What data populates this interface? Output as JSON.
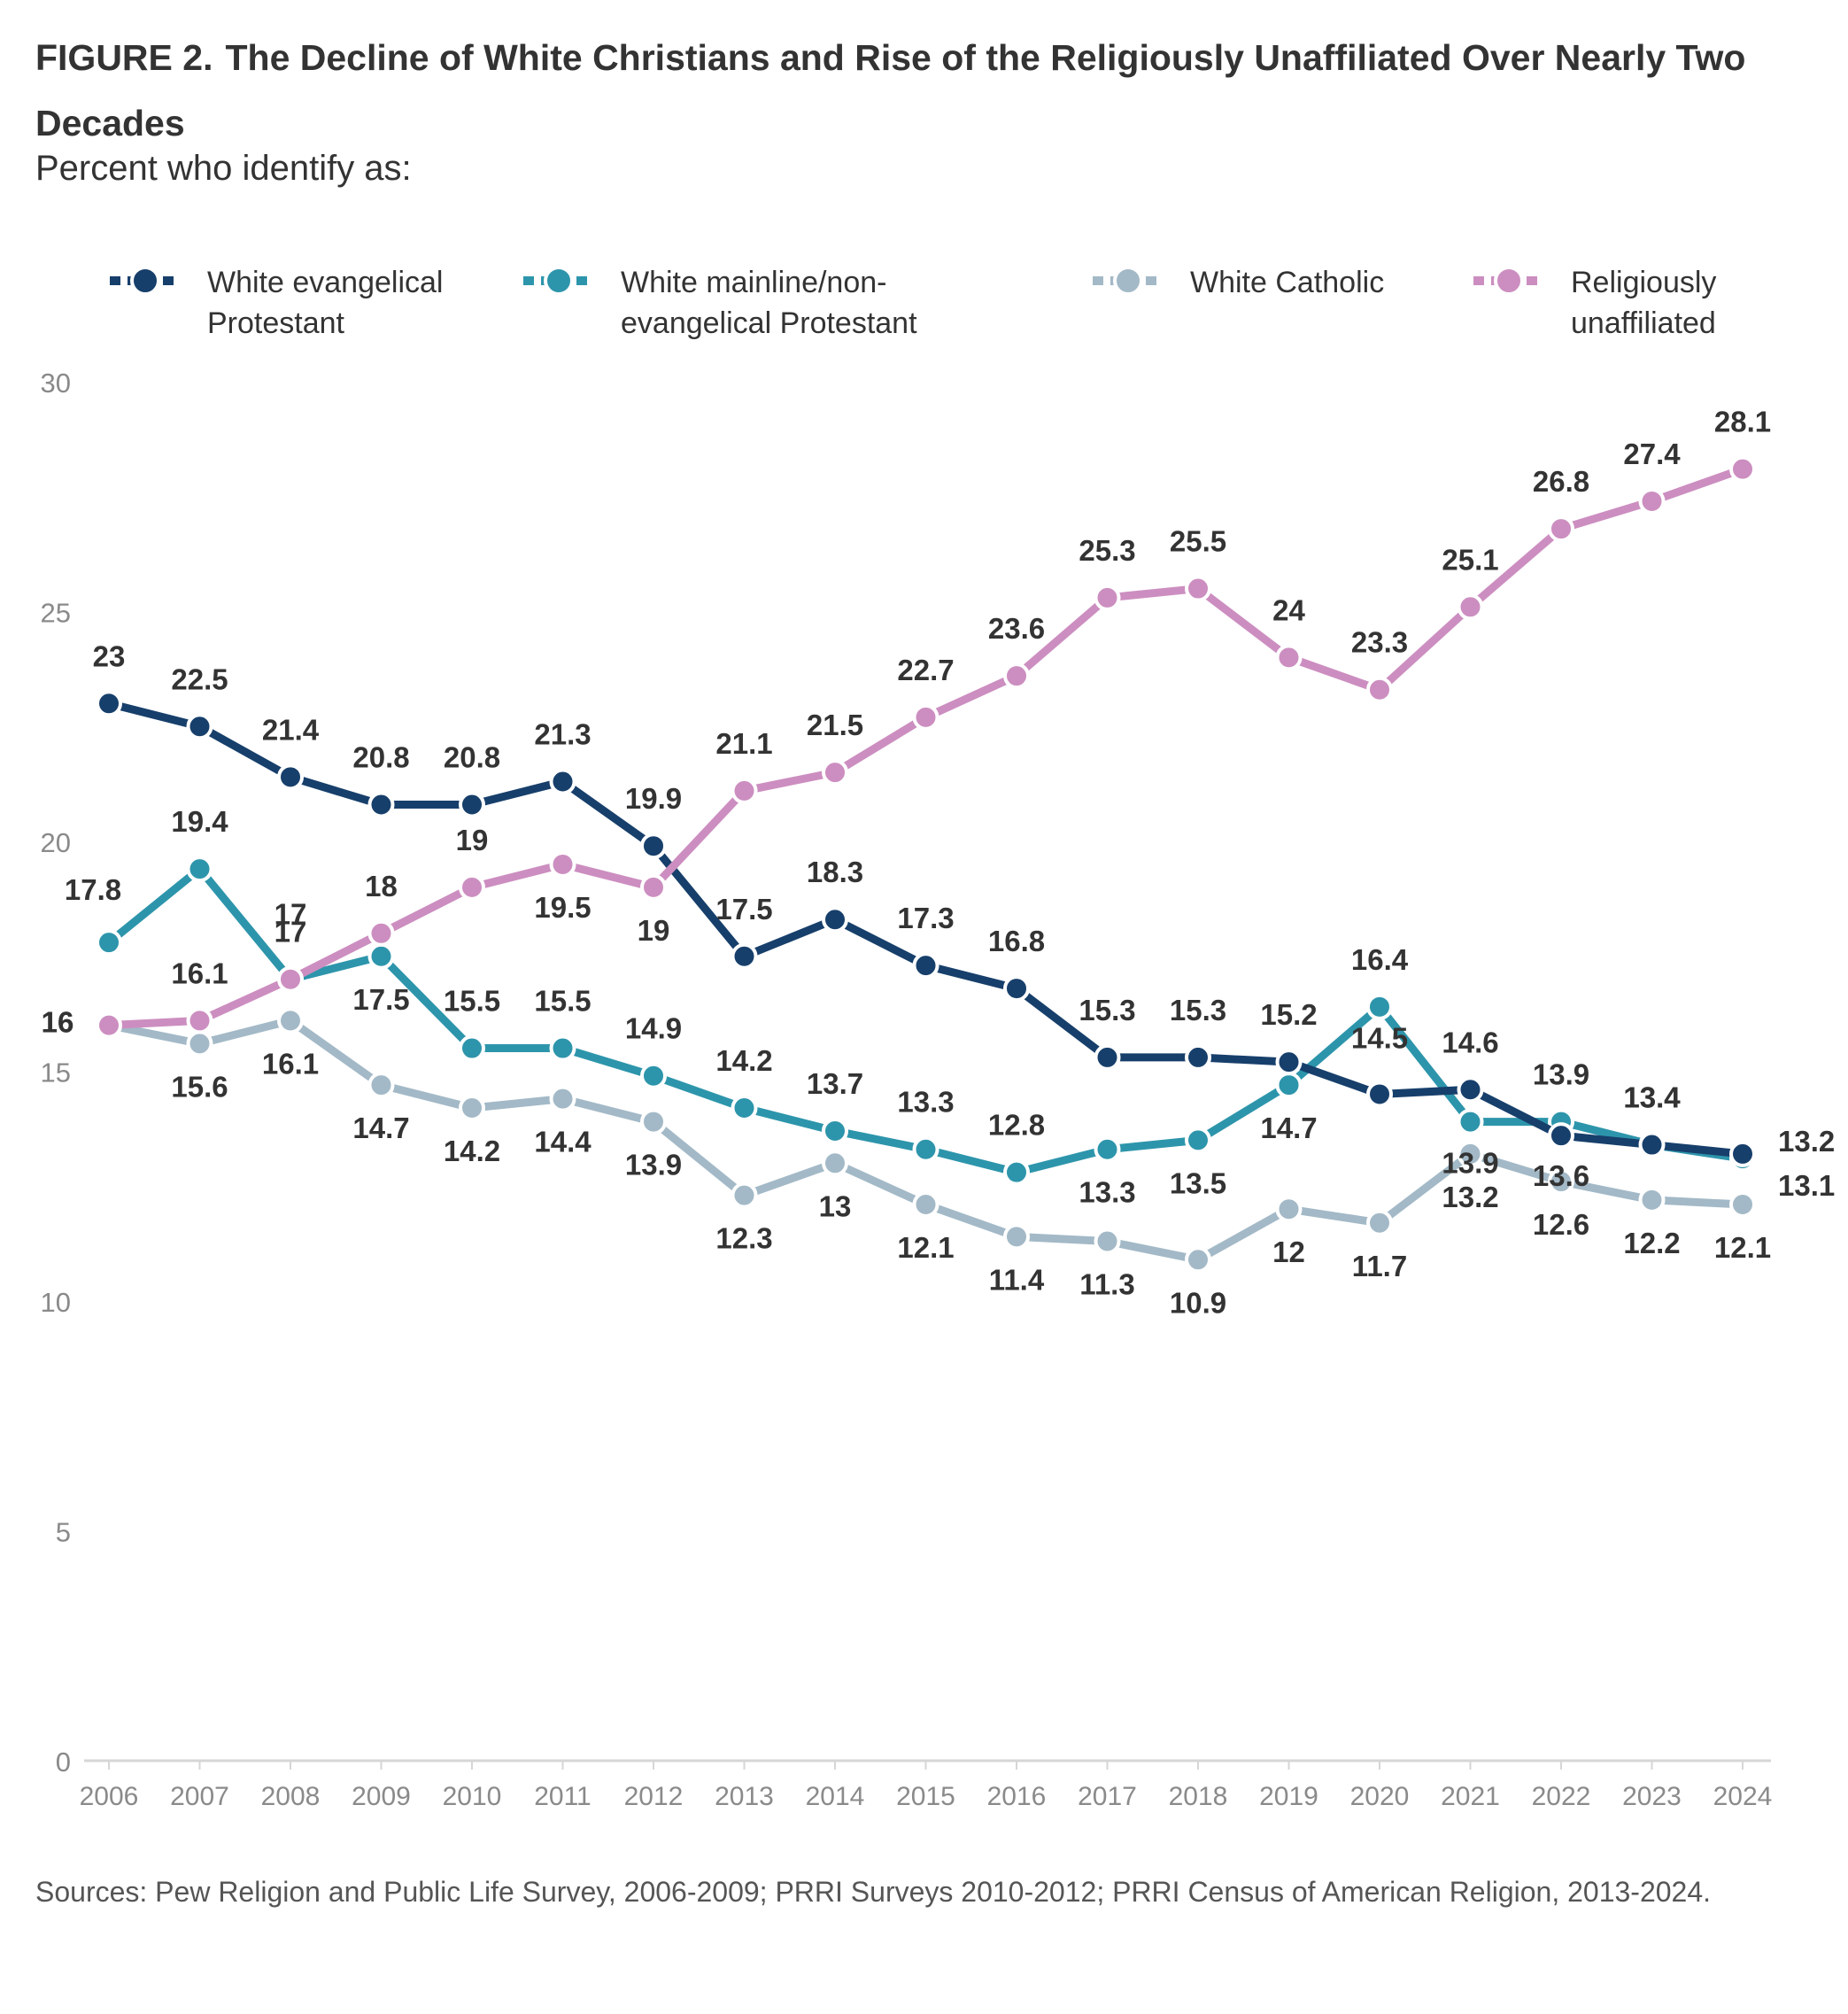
{
  "header": {
    "figure_label": "FIGURE 2.",
    "title": "The Decline of White Christians and Rise of the Religiously Unaffiliated Over Nearly Two Decades",
    "subtitle": "Percent who identify as:"
  },
  "source_note": "Sources: Pew Religion and Public Life Survey, 2006-2009; PRRI Surveys 2010-2012; PRRI Census of American Religion, 2013-2024.",
  "chart_data": {
    "type": "line",
    "x": [
      "2006",
      "2007",
      "2008",
      "2009",
      "2010",
      "2011",
      "2012",
      "2013",
      "2014",
      "2015",
      "2016",
      "2017",
      "2018",
      "2019",
      "2020",
      "2021",
      "2022",
      "2023",
      "2024"
    ],
    "ylim": [
      0,
      30
    ],
    "yticks": [
      0,
      5,
      10,
      15,
      20,
      25,
      30
    ],
    "grid": false,
    "legend_position": "top",
    "xlabel": "",
    "ylabel": "",
    "series": [
      {
        "name_lines": [
          "White evangelical",
          "Protestant"
        ],
        "color": "#173f6b",
        "values": [
          23,
          22.5,
          21.4,
          20.8,
          20.8,
          21.3,
          19.9,
          17.5,
          18.3,
          17.3,
          16.8,
          15.3,
          15.3,
          15.2,
          14.5,
          14.6,
          13.6,
          13.4,
          13.2
        ]
      },
      {
        "name_lines": [
          "White mainline/non-",
          "evangelical Protestant"
        ],
        "color": "#2d95ab",
        "values": [
          17.8,
          19.4,
          17,
          17.5,
          15.5,
          15.5,
          14.9,
          14.2,
          13.7,
          13.3,
          12.8,
          13.3,
          13.5,
          14.7,
          16.4,
          13.9,
          13.9,
          13.4,
          13.1
        ]
      },
      {
        "name_lines": [
          "White Catholic"
        ],
        "color": "#a3b9c7",
        "values": [
          16,
          15.6,
          16.1,
          14.7,
          14.2,
          14.4,
          13.9,
          12.3,
          13,
          12.1,
          11.4,
          11.3,
          10.9,
          12,
          11.7,
          13.2,
          12.6,
          12.2,
          12.1
        ]
      },
      {
        "name_lines": [
          "Religiously",
          "unaffiliated"
        ],
        "color": "#cc8ec0",
        "values": [
          16,
          16.1,
          17,
          18,
          19,
          19.5,
          19,
          21.1,
          21.5,
          22.7,
          23.6,
          25.3,
          25.5,
          24,
          23.3,
          25.1,
          26.8,
          27.4,
          28.1
        ]
      }
    ]
  }
}
